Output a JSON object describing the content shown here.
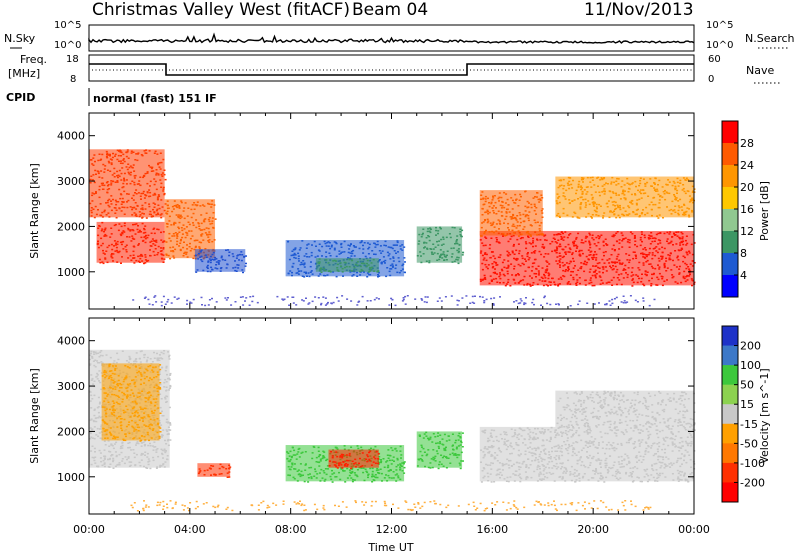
{
  "header": {
    "station": "Christmas Valley West (fitACF)",
    "beam": "Beam 04",
    "date": "11/Nov/2013"
  },
  "noise_panel": {
    "left_label": "N.Sky",
    "right_label": "N.Search",
    "left_ticks": [
      "10^5",
      "10^0"
    ],
    "right_ticks": [
      "10^5",
      "10^0"
    ]
  },
  "freq_panel": {
    "left_label_1": "Freq.",
    "left_label_2": "[MHz]",
    "right_label": "Nave",
    "left_ticks": [
      "18",
      "8"
    ],
    "right_ticks": [
      "60",
      "0"
    ]
  },
  "cpid": {
    "label": "CPID",
    "text": "normal (fast) 151 IF"
  },
  "chart_data": [
    {
      "type": "heatmap",
      "name": "power-panel",
      "ylabel": "Slant Range [km]",
      "yticks": [
        "4000",
        "3000",
        "2000",
        "1000"
      ],
      "colorbar_label": "Power [dB]",
      "colorbar_ticks": [
        "28",
        "24",
        "20",
        "16",
        "12",
        "8",
        "4"
      ],
      "colorbar_colors": [
        "#ff0000",
        "#ff5a00",
        "#ff9600",
        "#ffc800",
        "#90c890",
        "#3c9664",
        "#1e5ad2",
        "#0000ff"
      ],
      "blobs": [
        {
          "x0": 0.0,
          "x1": 3.0,
          "y0": 2200,
          "y1": 3700,
          "color": "#ff3a00"
        },
        {
          "x0": 0.3,
          "x1": 3.0,
          "y0": 1200,
          "y1": 2100,
          "color": "#ff2000"
        },
        {
          "x0": 3.0,
          "x1": 5.0,
          "y0": 1300,
          "y1": 2600,
          "color": "#ff6000"
        },
        {
          "x0": 4.2,
          "x1": 6.2,
          "y0": 1000,
          "y1": 1500,
          "color": "#2050d0"
        },
        {
          "x0": 7.8,
          "x1": 12.5,
          "y0": 900,
          "y1": 1700,
          "color": "#1e5ad2"
        },
        {
          "x0": 9.0,
          "x1": 11.5,
          "y0": 1000,
          "y1": 1300,
          "color": "#3c9664"
        },
        {
          "x0": 13.0,
          "x1": 14.8,
          "y0": 1200,
          "y1": 2000,
          "color": "#3c9664"
        },
        {
          "x0": 15.5,
          "x1": 24.0,
          "y0": 700,
          "y1": 1900,
          "color": "#ff1000"
        },
        {
          "x0": 15.5,
          "x1": 18.0,
          "y0": 1800,
          "y1": 2800,
          "color": "#ff6000"
        },
        {
          "x0": 18.5,
          "x1": 24.0,
          "y0": 2200,
          "y1": 3100,
          "color": "#ff9600"
        }
      ]
    },
    {
      "type": "heatmap",
      "name": "velocity-panel",
      "xlabel": "Time UT",
      "ylabel": "Slant Range [km]",
      "yticks": [
        "4000",
        "3000",
        "2000",
        "1000"
      ],
      "xticks": [
        "00:00",
        "04:00",
        "08:00",
        "12:00",
        "16:00",
        "20:00",
        "00:00"
      ],
      "colorbar_label": "Velocity [m s^-1]",
      "colorbar_ticks": [
        "200",
        "100",
        "50",
        "15",
        "-15",
        "-50",
        "-100",
        "-200"
      ],
      "colorbar_colors": [
        "#1e32c8",
        "#3c78c8",
        "#3cc83c",
        "#8cd250",
        "#c8c8c8",
        "#ffa000",
        "#ff7800",
        "#ff3000",
        "#ff0000"
      ],
      "blobs": [
        {
          "x0": 0.0,
          "x1": 3.2,
          "y0": 1200,
          "y1": 3800,
          "color": "#c8c8c8"
        },
        {
          "x0": 0.5,
          "x1": 2.8,
          "y0": 1800,
          "y1": 3500,
          "color": "#ffa000"
        },
        {
          "x0": 4.3,
          "x1": 5.6,
          "y0": 1000,
          "y1": 1300,
          "color": "#ff3000"
        },
        {
          "x0": 7.8,
          "x1": 12.5,
          "y0": 900,
          "y1": 1700,
          "color": "#3cc83c"
        },
        {
          "x0": 9.5,
          "x1": 11.5,
          "y0": 1200,
          "y1": 1600,
          "color": "#ff2000"
        },
        {
          "x0": 13.0,
          "x1": 14.8,
          "y0": 1200,
          "y1": 2000,
          "color": "#3cc83c"
        },
        {
          "x0": 15.5,
          "x1": 24.0,
          "y0": 900,
          "y1": 2100,
          "color": "#c8c8c8"
        },
        {
          "x0": 18.5,
          "x1": 24.0,
          "y0": 2100,
          "y1": 2900,
          "color": "#c8c8c8"
        }
      ]
    }
  ]
}
